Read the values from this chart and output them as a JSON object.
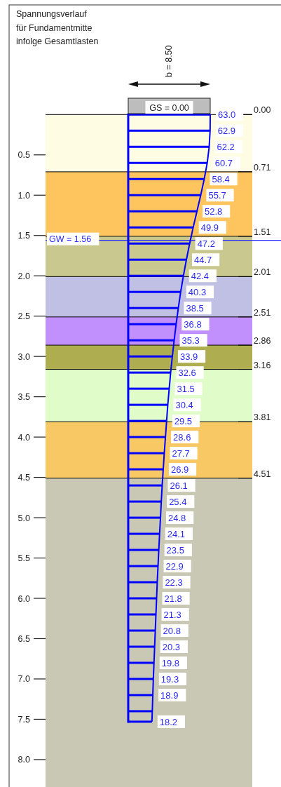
{
  "chart_data": {
    "type": "bar",
    "orientation": "horizontal",
    "title": "Spannungsverlauf\nfür Fundamentmitte\ninfolge Gesamtlasten",
    "x": [
      0,
      0.2,
      0.4,
      0.6,
      0.8,
      1.0,
      1.2,
      1.4,
      1.6,
      1.8,
      2.0,
      2.2,
      2.4,
      2.6,
      2.8,
      3.0,
      3.2,
      3.4,
      3.6,
      3.8,
      4.0,
      4.2,
      4.4,
      4.6,
      4.8,
      5.0,
      5.2,
      5.4,
      5.6,
      5.8,
      6.0,
      6.2,
      6.4,
      6.6,
      6.8,
      7.0,
      7.2,
      7.4,
      7.53
    ],
    "series": [
      {
        "color": "#0000ff",
        "values": [
          63.0,
          62.9,
          62.2,
          60.7,
          58.4,
          55.7,
          52.8,
          49.9,
          47.2,
          44.7,
          42.4,
          40.3,
          38.5,
          36.8,
          35.3,
          33.9,
          32.6,
          31.5,
          30.4,
          29.5,
          28.6,
          27.7,
          26.9,
          26.1,
          25.4,
          24.8,
          24.1,
          23.5,
          22.9,
          22.3,
          21.8,
          21.3,
          20.8,
          20.3,
          19.8,
          19.3,
          18.9,
          18.5,
          18.2
        ],
        "value_labels": [
          "63.0",
          "62.9",
          "62.2",
          "60.7",
          "58.4",
          "55.7",
          "52.8",
          "49.9",
          "47.2",
          "44.7",
          "42.4",
          "40.3",
          "38.5",
          "36.8",
          "35.3",
          "33.9",
          "32.6",
          "31.5",
          "30.4",
          "29.5",
          "28.6",
          "27.7",
          "26.9",
          "26.1",
          "25.4",
          "24.8",
          "24.1",
          "23.5",
          "22.9",
          "22.3",
          "21.8",
          "21.3",
          "20.8",
          "20.3",
          "19.8",
          "19.3",
          "18.9",
          null,
          "18.2"
        ]
      },
      {
        "type": "line",
        "color": "#0000ff",
        "values": [
          63.0,
          62.9,
          62.2,
          60.7,
          58.4,
          55.7,
          52.8,
          49.9,
          47.2,
          44.7,
          42.4,
          40.3,
          38.5,
          36.8,
          35.3,
          33.9,
          32.6,
          31.5,
          30.4,
          29.5,
          28.6,
          27.7,
          26.9,
          26.1,
          25.4,
          24.8,
          24.1,
          23.5,
          22.9,
          22.3,
          21.8,
          21.3,
          20.8,
          20.3,
          19.8,
          19.3,
          18.9,
          18.5,
          18.2
        ]
      }
    ],
    "xlim": [
      -63.5,
      95.3
    ],
    "ylim": [
      8.34,
      0
    ],
    "yticks": [
      0.5,
      {
        "value": 1.0,
        "label": "1.0"
      },
      1.5,
      {
        "value": 2.0,
        "label": "2.0"
      },
      2.5,
      {
        "value": 3.0,
        "label": "3.0"
      },
      3.5,
      {
        "value": 4.0,
        "label": "4.0"
      },
      4.5,
      {
        "value": 5.0,
        "label": "5.0"
      },
      5.5,
      {
        "value": 6.0,
        "label": "6.0"
      },
      6.5,
      {
        "value": 7.0,
        "label": "7.0"
      },
      7.5,
      {
        "value": 8.0,
        "label": "8.0"
      }
    ],
    "tick_labels": "y",
    "grid": false,
    "bands": [
      {
        "axis": "y",
        "from": 0,
        "to": 0.71,
        "color": "#fefce2"
      },
      {
        "axis": "y",
        "from": 0.71,
        "to": 1.51,
        "color": "#fec45e"
      },
      {
        "axis": "y",
        "from": 1.51,
        "to": 2.01,
        "color": "#c8c88f"
      },
      {
        "axis": "y",
        "from": 2.01,
        "to": 2.51,
        "color": "#c0c0e4"
      },
      {
        "axis": "y",
        "from": 2.51,
        "to": 2.86,
        "color": "#c290fc"
      },
      {
        "axis": "y",
        "from": 2.86,
        "to": 3.16,
        "color": "#aead50"
      },
      {
        "axis": "y",
        "from": 3.16,
        "to": 3.81,
        "color": "#e0fcc9"
      },
      {
        "axis": "y",
        "from": 3.81,
        "to": 4.51,
        "color": "#f8c864"
      },
      {
        "axis": "y",
        "from": 4.51,
        "to": 8.34,
        "color": "#c9c8b4"
      }
    ],
    "ref_lines": [
      {
        "axis": "y",
        "value": 0,
        "label": "0.00",
        "color": "#000000"
      },
      {
        "axis": "y",
        "value": 0.71,
        "label": "0.71",
        "color": "#000000"
      },
      {
        "axis": "y",
        "value": 1.51,
        "label": "1.51",
        "color": "#000000"
      },
      {
        "axis": "y",
        "value": 2.01,
        "label": "2.01",
        "color": "#000000"
      },
      {
        "axis": "y",
        "value": 2.51,
        "label": "2.51",
        "color": "#000000"
      },
      {
        "axis": "y",
        "value": 2.86,
        "label": "2.86",
        "color": "#000000"
      },
      {
        "axis": "y",
        "value": 3.16,
        "label": "3.16",
        "color": "#000000"
      },
      {
        "axis": "y",
        "value": 3.81,
        "label": "3.81",
        "color": "#000000"
      },
      {
        "axis": "y",
        "value": 4.51,
        "label": "4.51",
        "color": "#000000"
      },
      {
        "axis": "y",
        "value": 1.56,
        "label": "GW = 1.56",
        "color": "#2a2aff"
      },
      {
        "axis": "x",
        "value": 0,
        "color": "#0000ff"
      }
    ],
    "annotations": [
      "GS = 0.00",
      "b = 8.50"
    ]
  }
}
